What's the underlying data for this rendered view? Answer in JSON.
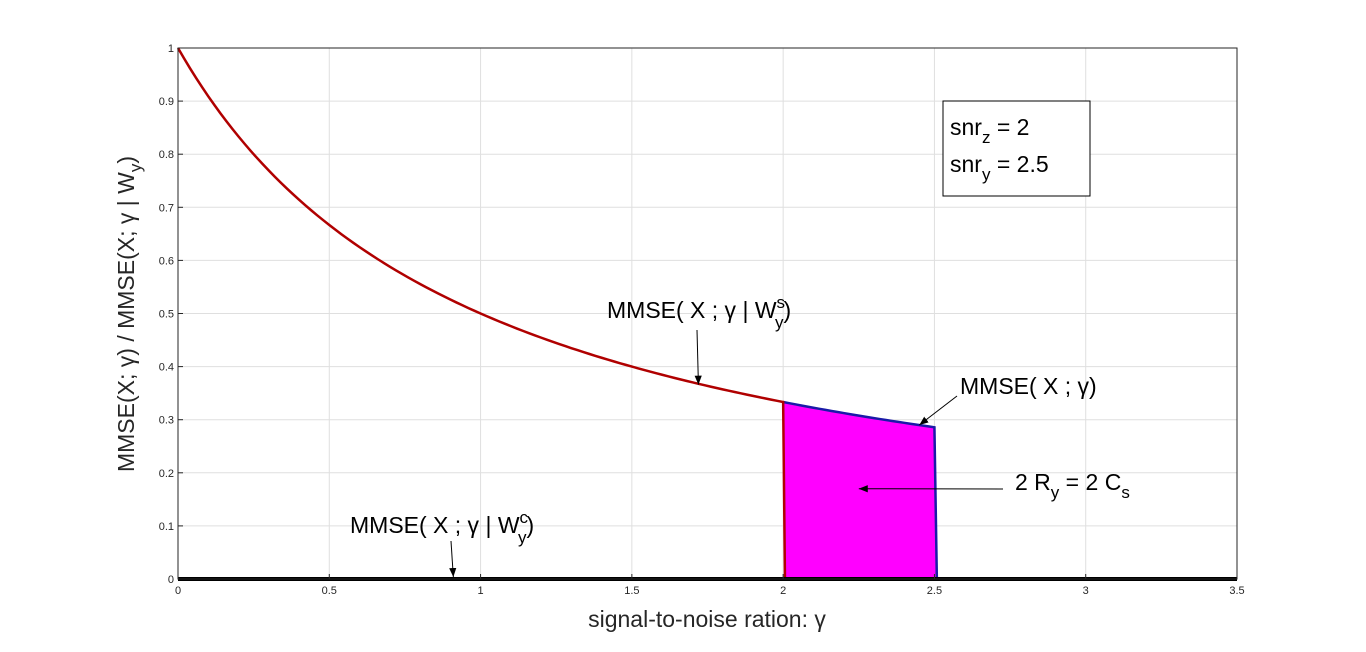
{
  "chart_data": {
    "type": "line",
    "title": "",
    "xlabel": "signal-to-noise ration: γ",
    "ylabel": "MMSE(X; γ) / MMSE(X; γ | W_y)",
    "ylabel_parts": {
      "main": "MMSE(X; γ) / MMSE(X; γ | W",
      "sub": "y",
      "close": ")"
    },
    "xlim": [
      0,
      3.5
    ],
    "ylim": [
      0,
      1
    ],
    "grid": true,
    "xticks": [
      0,
      0.5,
      1,
      1.5,
      2,
      2.5,
      3,
      3.5
    ],
    "xtick_labels": [
      "0",
      "0.5",
      "1",
      "1.5",
      "2",
      "2.5",
      "3",
      "3.5"
    ],
    "yticks": [
      0,
      0.1,
      0.2,
      0.3,
      0.4,
      0.5,
      0.6,
      0.7,
      0.8,
      0.9,
      1
    ],
    "ytick_labels": [
      "0",
      "0.1",
      "0.2",
      "0.3",
      "0.4",
      "0.5",
      "0.6",
      "0.7",
      "0.8",
      "0.9",
      "1"
    ],
    "series": [
      {
        "name": "MMSE( X ; γ | W_y^s)",
        "formula": "1/(1+γ) for γ ≤ 2, then 0",
        "color": "#b00000",
        "x": [
          0,
          0.25,
          0.5,
          0.75,
          1,
          1.25,
          1.5,
          1.75,
          2
        ],
        "y": [
          1,
          0.8,
          0.667,
          0.571,
          0.5,
          0.444,
          0.4,
          0.364,
          0.333
        ]
      },
      {
        "name": "MMSE( X ; γ)",
        "formula": "1/(1+γ) for γ ≤ 2.5, then 0",
        "color": "#1a1aa8",
        "x": [
          2,
          2.25,
          2.5
        ],
        "y": [
          0.333,
          0.308,
          0.286
        ]
      },
      {
        "name": "MMSE( X ; γ | W_y^c)",
        "color": "#000000",
        "x": [
          0,
          3.5
        ],
        "y": [
          0,
          0
        ]
      }
    ],
    "shaded_region": {
      "label": "2 R_y = 2 C_s",
      "color": "#ff00ff",
      "x_from": 2,
      "x_to": 2.5,
      "between": "MMSE( X ; γ) and 0"
    },
    "legend_box": {
      "placement": "top-right",
      "lines": [
        {
          "name": "snr",
          "sub": "z",
          "value": " = 2"
        },
        {
          "name": "snr",
          "sub": "y",
          "value": " = 2.5"
        }
      ]
    },
    "annotations": {
      "ws": {
        "pre": "MMSE( X ; γ | W",
        "sup": "s",
        "sub": "y",
        "post": ")",
        "point_x": 1.72,
        "point_y": 0.366
      },
      "mmse": {
        "text": "MMSE( X ; γ)",
        "point_x": 2.45,
        "point_y": 0.29
      },
      "area": {
        "pre": "2 R",
        "sub1": "y",
        "mid": " = 2 C",
        "sub2": "s",
        "point_x": 2.25,
        "point_y": 0.17
      },
      "wc": {
        "pre": "MMSE( X ; γ | W",
        "sup": "c",
        "sub": "y",
        "post": ")",
        "point_x": 0.91,
        "point_y": 0
      }
    }
  }
}
